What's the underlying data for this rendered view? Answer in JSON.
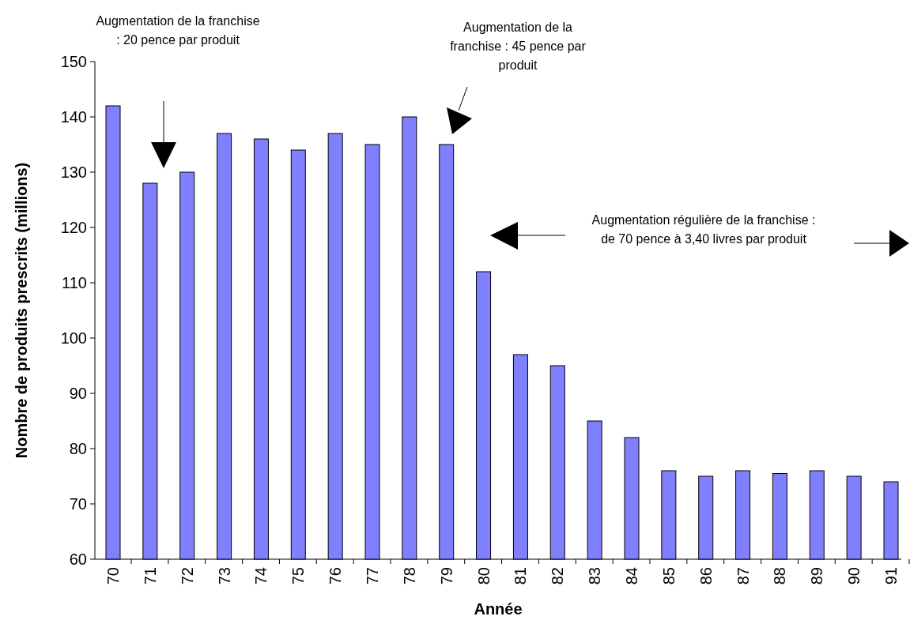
{
  "chart_data": {
    "type": "bar",
    "xlabel": "Année",
    "ylabel": "Nombre de produits prescrits (millions)",
    "categories": [
      "70",
      "71",
      "72",
      "73",
      "74",
      "75",
      "76",
      "77",
      "78",
      "79",
      "80",
      "81",
      "82",
      "83",
      "84",
      "85",
      "86",
      "87",
      "88",
      "89",
      "90",
      "91"
    ],
    "values": [
      142,
      128,
      130,
      137,
      136,
      134,
      137,
      135,
      140,
      135,
      112,
      97,
      95,
      85,
      82,
      76,
      75,
      76,
      75.5,
      76,
      75,
      74
    ],
    "color": "#8080ff",
    "ylim": [
      60,
      150
    ],
    "yticks": [
      60,
      70,
      80,
      90,
      100,
      110,
      120,
      130,
      140,
      150
    ],
    "grid": false,
    "annotations": [
      "Augmentation de la franchise : 20 pence par produit",
      "Augmentation de la franchise : 45 pence par produit",
      "Augmentation régulière de la franchise : de 70 pence à 3,40 livres par produit"
    ]
  }
}
